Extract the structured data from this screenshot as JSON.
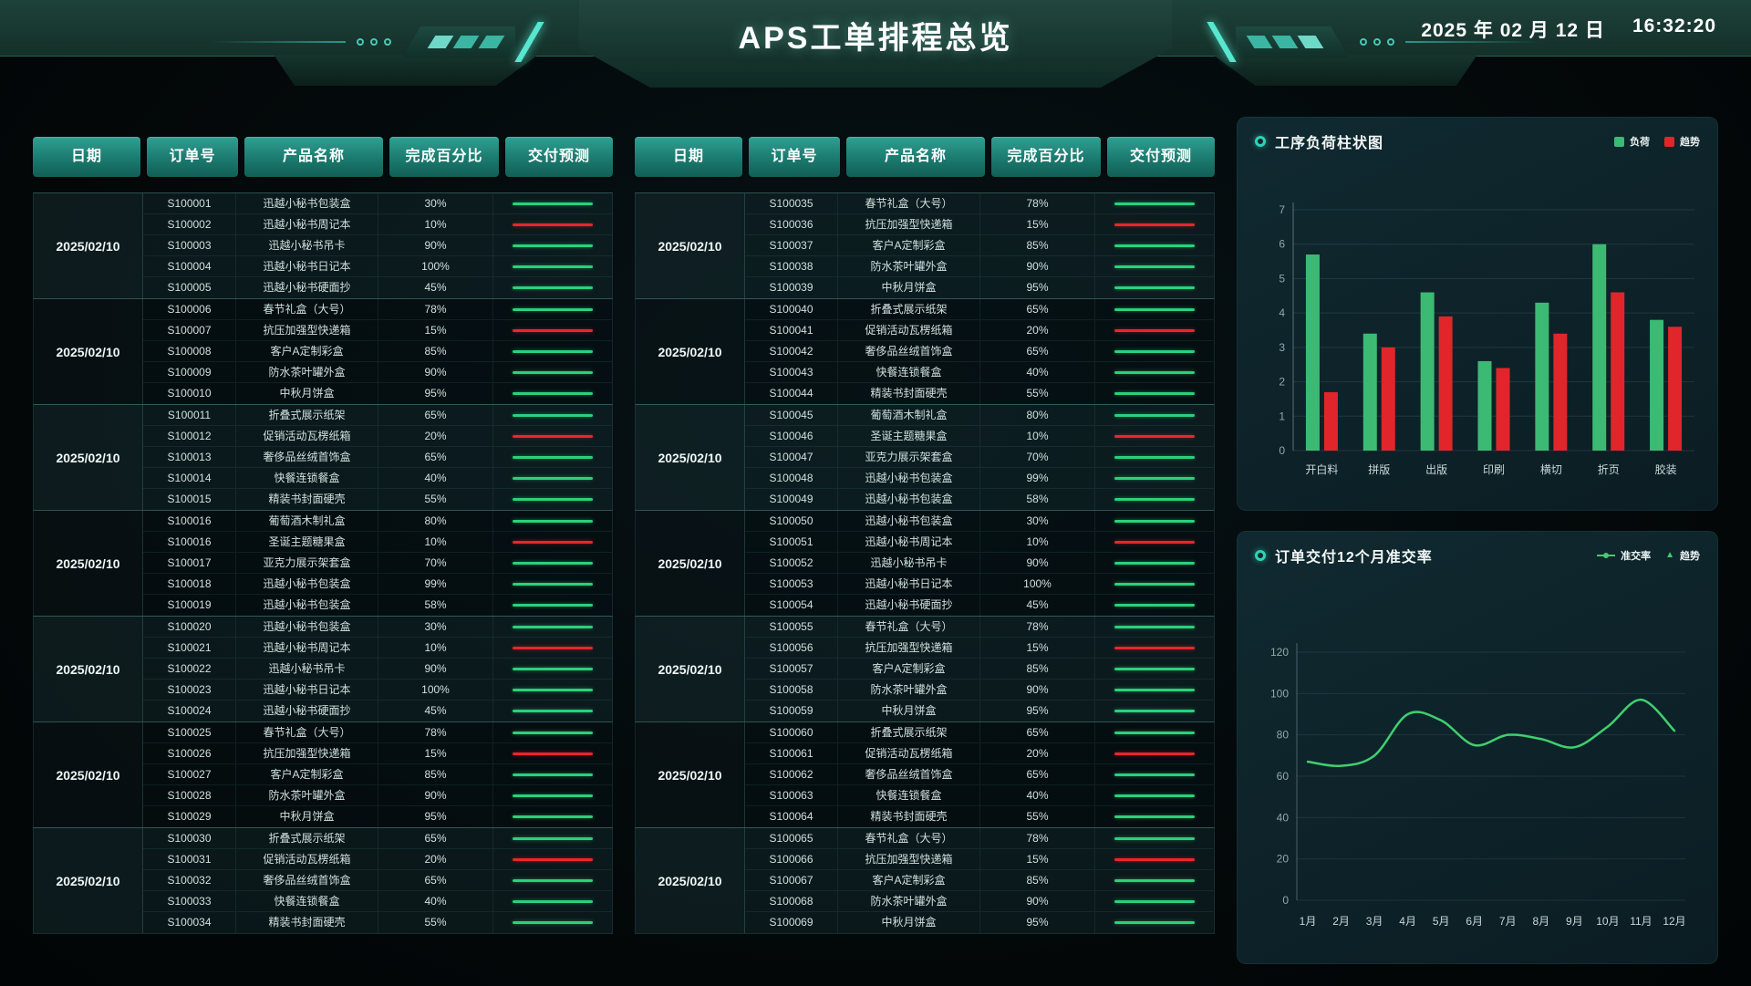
{
  "header": {
    "title": "APS工单排程总览",
    "date": "2025 年 02 月 12 日",
    "time": "16:32:20"
  },
  "table": {
    "columns": [
      "日期",
      "订单号",
      "产品名称",
      "完成百分比",
      "交付预测"
    ]
  },
  "tables": [
    {
      "groups": [
        {
          "date": "2025/02/10",
          "rows": [
            {
              "order": "S100001",
              "product": "迅越小秘书包装盒",
              "percent": "30%",
              "trend": "green"
            },
            {
              "order": "S100002",
              "product": "迅越小秘书周记本",
              "percent": "10%",
              "trend": "red"
            },
            {
              "order": "S100003",
              "product": "迅越小秘书吊卡",
              "percent": "90%",
              "trend": "green"
            },
            {
              "order": "S100004",
              "product": "迅越小秘书日记本",
              "percent": "100%",
              "trend": "green"
            },
            {
              "order": "S100005",
              "product": "迅越小秘书硬面抄",
              "percent": "45%",
              "trend": "green"
            }
          ]
        },
        {
          "date": "2025/02/10",
          "rows": [
            {
              "order": "S100006",
              "product": "春节礼盒（大号）",
              "percent": "78%",
              "trend": "green"
            },
            {
              "order": "S100007",
              "product": "抗压加强型快递箱",
              "percent": "15%",
              "trend": "red"
            },
            {
              "order": "S100008",
              "product": "客户A定制彩盒",
              "percent": "85%",
              "trend": "green"
            },
            {
              "order": "S100009",
              "product": "防水茶叶罐外盒",
              "percent": "90%",
              "trend": "green"
            },
            {
              "order": "S100010",
              "product": "中秋月饼盒",
              "percent": "95%",
              "trend": "green"
            }
          ]
        },
        {
          "date": "2025/02/10",
          "rows": [
            {
              "order": "S100011",
              "product": "折叠式展示纸架",
              "percent": "65%",
              "trend": "green"
            },
            {
              "order": "S100012",
              "product": "促销活动瓦楞纸箱",
              "percent": "20%",
              "trend": "red"
            },
            {
              "order": "S100013",
              "product": "奢侈品丝绒首饰盒",
              "percent": "65%",
              "trend": "green"
            },
            {
              "order": "S100014",
              "product": "快餐连锁餐盒",
              "percent": "40%",
              "trend": "green"
            },
            {
              "order": "S100015",
              "product": "精装书封面硬壳",
              "percent": "55%",
              "trend": "green"
            }
          ]
        },
        {
          "date": "2025/02/10",
          "rows": [
            {
              "order": "S100016",
              "product": "葡萄酒木制礼盒",
              "percent": "80%",
              "trend": "green"
            },
            {
              "order": "S100016",
              "product": "圣诞主题糖果盒",
              "percent": "10%",
              "trend": "red"
            },
            {
              "order": "S100017",
              "product": "亚克力展示架套盒",
              "percent": "70%",
              "trend": "green"
            },
            {
              "order": "S100018",
              "product": "迅越小秘书包装盒",
              "percent": "99%",
              "trend": "green"
            },
            {
              "order": "S100019",
              "product": "迅越小秘书包装盒",
              "percent": "58%",
              "trend": "green"
            }
          ]
        },
        {
          "date": "2025/02/10",
          "rows": [
            {
              "order": "S100020",
              "product": "迅越小秘书包装盒",
              "percent": "30%",
              "trend": "green"
            },
            {
              "order": "S100021",
              "product": "迅越小秘书周记本",
              "percent": "10%",
              "trend": "red"
            },
            {
              "order": "S100022",
              "product": "迅越小秘书吊卡",
              "percent": "90%",
              "trend": "green"
            },
            {
              "order": "S100023",
              "product": "迅越小秘书日记本",
              "percent": "100%",
              "trend": "green"
            },
            {
              "order": "S100024",
              "product": "迅越小秘书硬面抄",
              "percent": "45%",
              "trend": "green"
            }
          ]
        },
        {
          "date": "2025/02/10",
          "rows": [
            {
              "order": "S100025",
              "product": "春节礼盒（大号）",
              "percent": "78%",
              "trend": "green"
            },
            {
              "order": "S100026",
              "product": "抗压加强型快递箱",
              "percent": "15%",
              "trend": "red"
            },
            {
              "order": "S100027",
              "product": "客户A定制彩盒",
              "percent": "85%",
              "trend": "green"
            },
            {
              "order": "S100028",
              "product": "防水茶叶罐外盒",
              "percent": "90%",
              "trend": "green"
            },
            {
              "order": "S100029",
              "product": "中秋月饼盒",
              "percent": "95%",
              "trend": "green"
            }
          ]
        },
        {
          "date": "2025/02/10",
          "rows": [
            {
              "order": "S100030",
              "product": "折叠式展示纸架",
              "percent": "65%",
              "trend": "green"
            },
            {
              "order": "S100031",
              "product": "促销活动瓦楞纸箱",
              "percent": "20%",
              "trend": "red"
            },
            {
              "order": "S100032",
              "product": "奢侈品丝绒首饰盒",
              "percent": "65%",
              "trend": "green"
            },
            {
              "order": "S100033",
              "product": "快餐连锁餐盒",
              "percent": "40%",
              "trend": "green"
            },
            {
              "order": "S100034",
              "product": "精装书封面硬壳",
              "percent": "55%",
              "trend": "green"
            }
          ]
        }
      ]
    },
    {
      "groups": [
        {
          "date": "2025/02/10",
          "rows": [
            {
              "order": "S100035",
              "product": "春节礼盒（大号）",
              "percent": "78%",
              "trend": "green"
            },
            {
              "order": "S100036",
              "product": "抗压加强型快递箱",
              "percent": "15%",
              "trend": "red"
            },
            {
              "order": "S100037",
              "product": "客户A定制彩盒",
              "percent": "85%",
              "trend": "green"
            },
            {
              "order": "S100038",
              "product": "防水茶叶罐外盒",
              "percent": "90%",
              "trend": "green"
            },
            {
              "order": "S100039",
              "product": "中秋月饼盒",
              "percent": "95%",
              "trend": "green"
            }
          ]
        },
        {
          "date": "2025/02/10",
          "rows": [
            {
              "order": "S100040",
              "product": "折叠式展示纸架",
              "percent": "65%",
              "trend": "green"
            },
            {
              "order": "S100041",
              "product": "促销活动瓦楞纸箱",
              "percent": "20%",
              "trend": "red"
            },
            {
              "order": "S100042",
              "product": "奢侈品丝绒首饰盒",
              "percent": "65%",
              "trend": "green"
            },
            {
              "order": "S100043",
              "product": "快餐连锁餐盒",
              "percent": "40%",
              "trend": "green"
            },
            {
              "order": "S100044",
              "product": "精装书封面硬壳",
              "percent": "55%",
              "trend": "green"
            }
          ]
        },
        {
          "date": "2025/02/10",
          "rows": [
            {
              "order": "S100045",
              "product": "葡萄酒木制礼盒",
              "percent": "80%",
              "trend": "green"
            },
            {
              "order": "S100046",
              "product": "圣诞主题糖果盒",
              "percent": "10%",
              "trend": "red"
            },
            {
              "order": "S100047",
              "product": "亚克力展示架套盒",
              "percent": "70%",
              "trend": "green"
            },
            {
              "order": "S100048",
              "product": "迅越小秘书包装盒",
              "percent": "99%",
              "trend": "green"
            },
            {
              "order": "S100049",
              "product": "迅越小秘书包装盒",
              "percent": "58%",
              "trend": "green"
            }
          ]
        },
        {
          "date": "2025/02/10",
          "rows": [
            {
              "order": "S100050",
              "product": "迅越小秘书包装盒",
              "percent": "30%",
              "trend": "green"
            },
            {
              "order": "S100051",
              "product": "迅越小秘书周记本",
              "percent": "10%",
              "trend": "red"
            },
            {
              "order": "S100052",
              "product": "迅越小秘书吊卡",
              "percent": "90%",
              "trend": "green"
            },
            {
              "order": "S100053",
              "product": "迅越小秘书日记本",
              "percent": "100%",
              "trend": "green"
            },
            {
              "order": "S100054",
              "product": "迅越小秘书硬面抄",
              "percent": "45%",
              "trend": "green"
            }
          ]
        },
        {
          "date": "2025/02/10",
          "rows": [
            {
              "order": "S100055",
              "product": "春节礼盒（大号）",
              "percent": "78%",
              "trend": "green"
            },
            {
              "order": "S100056",
              "product": "抗压加强型快递箱",
              "percent": "15%",
              "trend": "red"
            },
            {
              "order": "S100057",
              "product": "客户A定制彩盒",
              "percent": "85%",
              "trend": "green"
            },
            {
              "order": "S100058",
              "product": "防水茶叶罐外盒",
              "percent": "90%",
              "trend": "green"
            },
            {
              "order": "S100059",
              "product": "中秋月饼盒",
              "percent": "95%",
              "trend": "green"
            }
          ]
        },
        {
          "date": "2025/02/10",
          "rows": [
            {
              "order": "S100060",
              "product": "折叠式展示纸架",
              "percent": "65%",
              "trend": "green"
            },
            {
              "order": "S100061",
              "product": "促销活动瓦楞纸箱",
              "percent": "20%",
              "trend": "red"
            },
            {
              "order": "S100062",
              "product": "奢侈品丝绒首饰盒",
              "percent": "65%",
              "trend": "green"
            },
            {
              "order": "S100063",
              "product": "快餐连锁餐盒",
              "percent": "40%",
              "trend": "green"
            },
            {
              "order": "S100064",
              "product": "精装书封面硬壳",
              "percent": "55%",
              "trend": "green"
            }
          ]
        },
        {
          "date": "2025/02/10",
          "rows": [
            {
              "order": "S100065",
              "product": "春节礼盒（大号）",
              "percent": "78%",
              "trend": "green"
            },
            {
              "order": "S100066",
              "product": "抗压加强型快递箱",
              "percent": "15%",
              "trend": "red"
            },
            {
              "order": "S100067",
              "product": "客户A定制彩盒",
              "percent": "85%",
              "trend": "green"
            },
            {
              "order": "S100068",
              "product": "防水茶叶罐外盒",
              "percent": "90%",
              "trend": "green"
            },
            {
              "order": "S100069",
              "product": "中秋月饼盒",
              "percent": "95%",
              "trend": "green"
            }
          ]
        }
      ]
    }
  ],
  "colors": {
    "green": "#3cba74",
    "red": "#e0262b",
    "line_green": "#3fcf6e",
    "forecast_green": "#2bd17a",
    "forecast_red": "#e8262d",
    "teal_accent": "#2fd3b6"
  },
  "chart_data": [
    {
      "type": "bar",
      "title": "工序负荷柱状图",
      "categories": [
        "开白料",
        "拼版",
        "出版",
        "印刷",
        "横切",
        "折页",
        "胶装"
      ],
      "series": [
        {
          "name": "负荷",
          "color": "#3cba74",
          "values": [
            5.7,
            3.4,
            4.6,
            2.6,
            4.3,
            6.0,
            3.8
          ]
        },
        {
          "name": "趋势",
          "color": "#e0262b",
          "values": [
            1.7,
            3.0,
            3.9,
            2.4,
            3.4,
            4.6,
            3.6
          ]
        }
      ],
      "xlabel": "",
      "ylabel": "",
      "ylim": [
        0,
        7
      ],
      "yticks": [
        0,
        1,
        2,
        3,
        4,
        5,
        6,
        7
      ],
      "grid": true,
      "legend_position": "top-right"
    },
    {
      "type": "line",
      "title": "订单交付12个月准交率",
      "categories": [
        "1月",
        "2月",
        "3月",
        "4月",
        "5月",
        "6月",
        "7月",
        "8月",
        "9月",
        "10月",
        "11月",
        "12月"
      ],
      "series": [
        {
          "name": "准交率",
          "color": "#3fcf6e",
          "values": [
            67,
            65,
            70,
            90,
            87,
            75,
            80,
            78,
            74,
            84,
            97,
            82
          ]
        }
      ],
      "legend": [
        {
          "label": "准交率",
          "marker": "line"
        },
        {
          "label": "趋势",
          "marker": "triangle"
        }
      ],
      "xlabel": "",
      "ylabel": "",
      "ylim": [
        0,
        120
      ],
      "yticks": [
        0,
        20,
        40,
        60,
        80,
        100,
        120
      ],
      "grid": true,
      "legend_position": "top-right"
    }
  ]
}
